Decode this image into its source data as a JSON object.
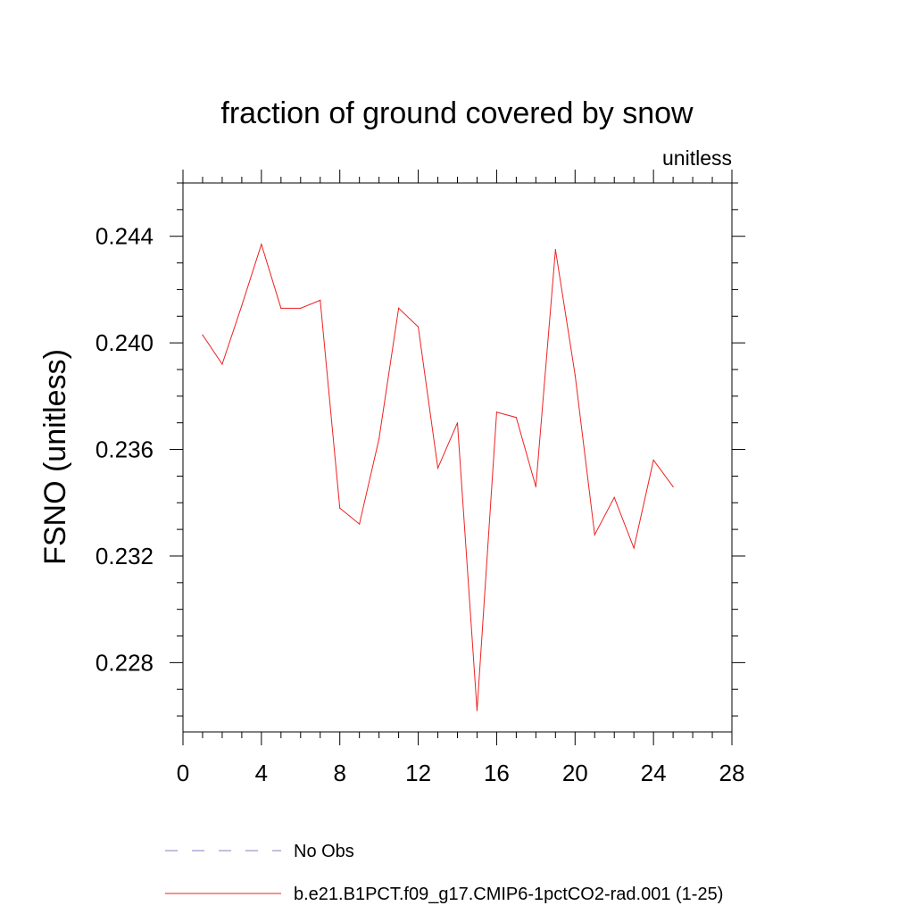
{
  "chart_data": {
    "type": "line",
    "title": "fraction of ground covered by snow",
    "units_label": "unitless",
    "ylabel": "FSNO  (unitless)",
    "xlabel": "",
    "xlim": [
      0,
      28
    ],
    "ylim": [
      0.2254,
      0.246
    ],
    "x_major_ticks": [
      0,
      4,
      8,
      12,
      16,
      20,
      24,
      28
    ],
    "x_tick_labels": [
      "0",
      "4",
      "8",
      "12",
      "16",
      "20",
      "24",
      "28"
    ],
    "x_minor_step": 1,
    "y_major_ticks": [
      0.228,
      0.232,
      0.236,
      0.24,
      0.244
    ],
    "y_tick_labels": [
      "0.228",
      "0.232",
      "0.236",
      "0.240",
      "0.244"
    ],
    "y_minor_step": 0.001,
    "grid": false,
    "legend_position": "bottom",
    "series": [
      {
        "name": "No Obs",
        "color": "#8080c0",
        "dash": true,
        "x": [],
        "values": []
      },
      {
        "name": "b.e21.B1PCT.f09_g17.CMIP6-1pctCO2-rad.001 (1-25)",
        "color": "#ee2222",
        "dash": false,
        "x": [
          1,
          2,
          3,
          4,
          5,
          6,
          7,
          8,
          9,
          10,
          11,
          12,
          13,
          14,
          15,
          16,
          17,
          18,
          19,
          20,
          21,
          22,
          23,
          24,
          25
        ],
        "values": [
          0.2403,
          0.2392,
          0.2414,
          0.2437,
          0.2413,
          0.2413,
          0.2416,
          0.2338,
          0.2332,
          0.2364,
          0.2413,
          0.2406,
          0.2353,
          0.237,
          0.2262,
          0.2374,
          0.2372,
          0.2346,
          0.2435,
          0.2388,
          0.2328,
          0.2342,
          0.2323,
          0.2356,
          0.2346
        ]
      }
    ]
  }
}
